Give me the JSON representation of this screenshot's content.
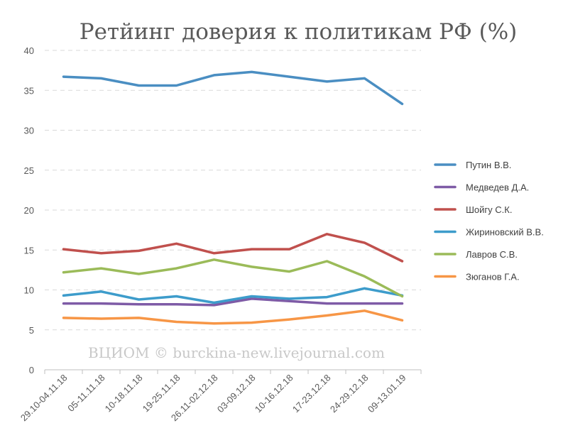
{
  "chart_data": {
    "type": "line",
    "title": "Ретйинг доверия к политикам РФ (%)",
    "xlabel": "",
    "ylabel": "",
    "ylim": [
      0,
      40
    ],
    "yticks": [
      0,
      5,
      10,
      15,
      20,
      25,
      30,
      35,
      40
    ],
    "grid": true,
    "legend_position": "right",
    "categories": [
      "29.10-04.11.18",
      "05-11.11.18",
      "10-18.11.18",
      "19-25.11.18",
      "26.11-02.12.18",
      "03-09.12.18",
      "10-16.12.18",
      "17-23.12.18",
      "24-29.12.18",
      "09-13.01.19"
    ],
    "series": [
      {
        "name": "Путин В.В.",
        "color": "#4a8ec2",
        "values": [
          36.7,
          36.5,
          35.6,
          35.6,
          36.9,
          37.3,
          36.7,
          36.1,
          36.5,
          33.3
        ]
      },
      {
        "name": "Медведев Д.А.",
        "color": "#7e5ba6",
        "values": [
          8.3,
          8.3,
          8.2,
          8.2,
          8.1,
          8.9,
          8.6,
          8.3,
          8.3,
          8.3
        ]
      },
      {
        "name": "Шойгу С.К.",
        "color": "#c0504d",
        "values": [
          15.1,
          14.6,
          14.9,
          15.8,
          14.6,
          15.1,
          15.1,
          17.0,
          15.9,
          13.6
        ]
      },
      {
        "name": "Жириновский В.В.",
        "color": "#3d9ccb",
        "values": [
          9.3,
          9.8,
          8.8,
          9.2,
          8.4,
          9.2,
          8.9,
          9.1,
          10.2,
          9.3
        ]
      },
      {
        "name": "Лавров С.В.",
        "color": "#9bbb59",
        "values": [
          12.2,
          12.7,
          12.0,
          12.7,
          13.8,
          12.9,
          12.3,
          13.6,
          11.7,
          9.2
        ]
      },
      {
        "name": "Зюганов Г.А.",
        "color": "#f79646",
        "values": [
          6.5,
          6.4,
          6.5,
          6.0,
          5.8,
          5.9,
          6.3,
          6.8,
          7.4,
          6.2
        ]
      }
    ],
    "watermark": "ВЦИОМ © burckina-new.livejournal.com"
  }
}
